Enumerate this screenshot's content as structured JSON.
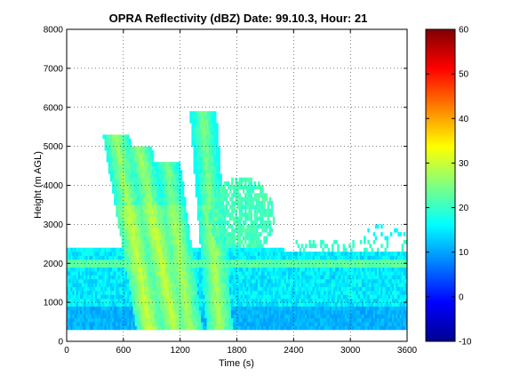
{
  "chart_data": {
    "type": "heatmap",
    "title": "OPRA Reflectivity (dBZ)  Date: 99.10.3, Hour: 21",
    "xlabel": "Time (s)",
    "ylabel": "Height (m AGL)",
    "xlim": [
      0,
      3600
    ],
    "ylim": [
      0,
      8000
    ],
    "x_ticks": [
      0,
      600,
      1200,
      1800,
      2400,
      3000,
      3600
    ],
    "y_ticks": [
      0,
      1000,
      2000,
      3000,
      4000,
      5000,
      6000,
      7000,
      8000
    ],
    "colorbar": {
      "range": [
        -10,
        60
      ],
      "ticks": [
        -10,
        0,
        10,
        20,
        30,
        40,
        50,
        60
      ],
      "colormap": "jet"
    },
    "grid": true,
    "field_description": {
      "background_echo": {
        "height_range": [
          300,
          2400
        ],
        "typical_dbz": [
          12,
          22
        ]
      },
      "base_band": {
        "height_range": [
          300,
          900
        ],
        "typical_dbz": [
          8,
          14
        ]
      },
      "bright_streaks": [
        {
          "time_top": 520,
          "height_top": 5300,
          "time_bottom": 880,
          "dbz_peak": 30
        },
        {
          "time_top": 760,
          "height_top": 5000,
          "time_bottom": 1140,
          "dbz_peak": 30
        },
        {
          "time_top": 1060,
          "height_top": 4600,
          "time_bottom": 1300,
          "dbz_peak": 28
        },
        {
          "time_top": 1440,
          "height_top": 5900,
          "time_bottom": 1620,
          "dbz_peak": 28
        }
      ],
      "sparse_region": {
        "time_range": [
          2400,
          3600
        ],
        "height_range": [
          2300,
          3000
        ]
      }
    }
  }
}
